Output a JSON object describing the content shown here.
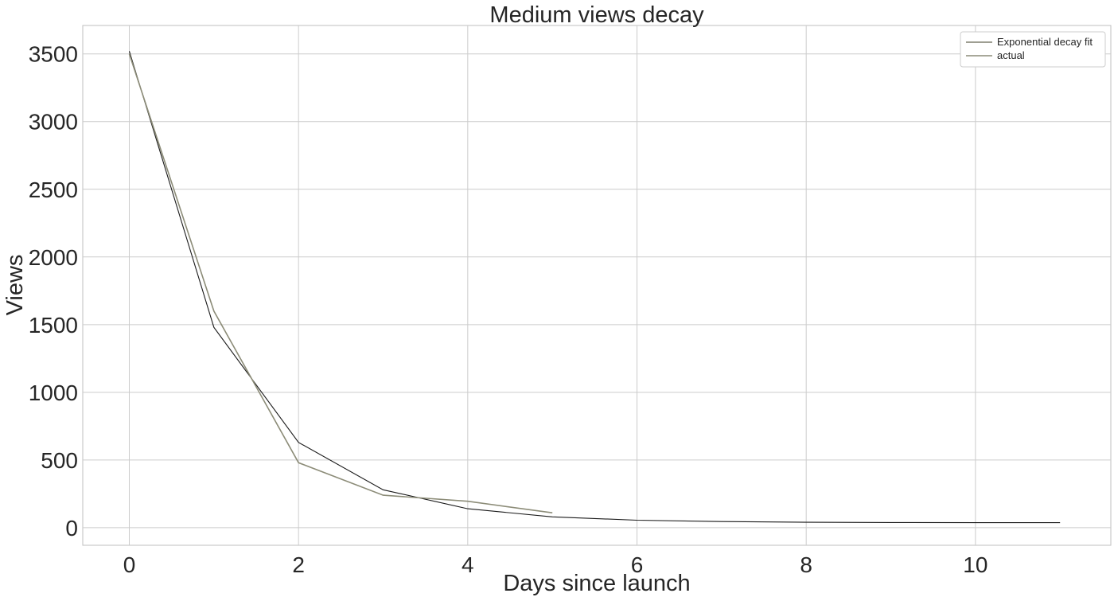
{
  "chart_data": {
    "type": "line",
    "title": "Medium views decay",
    "xlabel": "Days since launch",
    "ylabel": "Views",
    "xlim": [
      -0.55,
      11.6
    ],
    "ylim": [
      -130,
      3710
    ],
    "xticks": [
      0,
      2,
      4,
      6,
      8,
      10
    ],
    "yticks": [
      0,
      500,
      1000,
      1500,
      2000,
      2500,
      3000,
      3500
    ],
    "grid": true,
    "legend_position": "top-right",
    "series": [
      {
        "name": "Exponential decay fit",
        "color": "#1a1a1a",
        "legend_color": "#7f7f6f",
        "x": [
          0,
          1,
          2,
          3,
          4,
          5,
          6,
          7,
          8,
          9,
          10,
          11
        ],
        "y": [
          3520,
          1480,
          630,
          280,
          140,
          80,
          55,
          45,
          40,
          38,
          37,
          37
        ]
      },
      {
        "name": "actual",
        "color": "#8c8c78",
        "legend_color": "#8c8c78",
        "x": [
          0,
          1,
          2,
          3,
          4,
          5
        ],
        "y": [
          3500,
          1600,
          480,
          240,
          195,
          110
        ]
      }
    ]
  }
}
